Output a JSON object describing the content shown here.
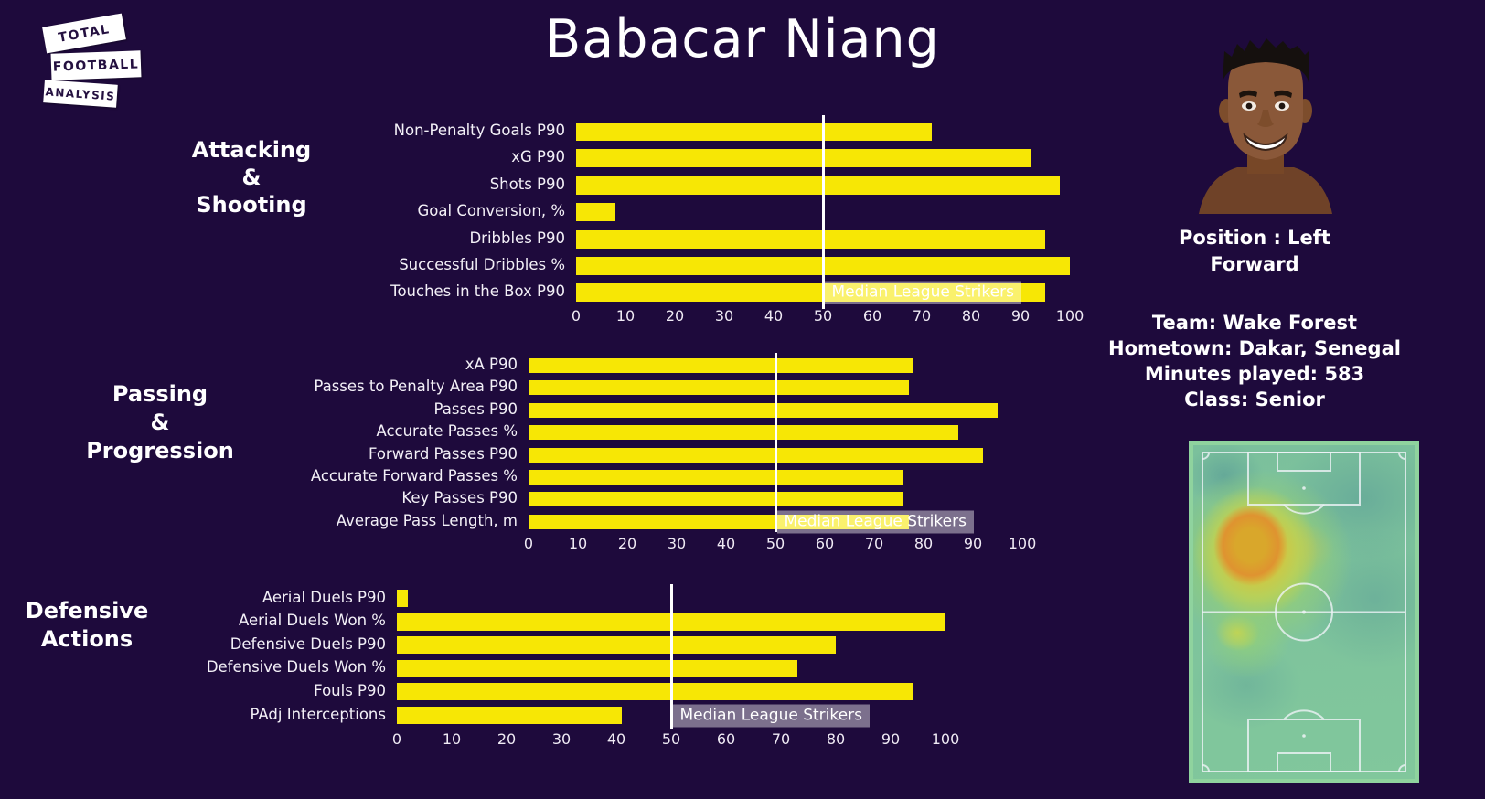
{
  "title": "Babacar Niang",
  "logo": {
    "lines": [
      "TOTAL",
      "FOOTBALL",
      "ANALYSIS"
    ]
  },
  "player": {
    "position_line1": "Position : Left",
    "position_line2": "Forward",
    "details": [
      "Team: Wake Forest",
      "Hometown: Dakar, Senegal",
      "Minutes played: 583",
      "Class: Senior"
    ]
  },
  "median_label": "Median League Strikers",
  "colors": {
    "background": "#1e0a3c",
    "bar_yellow": "#f7e705",
    "median_line": "#ffffff",
    "median_label_bg": "rgba(255,255,255,0.42)",
    "heatmap_hot": "#df9330",
    "heatmap_base": "#7ec29c"
  },
  "chart_data": [
    {
      "type": "bar",
      "orientation": "horizontal",
      "title_lines": [
        "Attacking",
        "&",
        "Shooting"
      ],
      "categories": [
        "Non-Penalty Goals P90",
        "xG P90",
        "Shots P90",
        "Goal Conversion, %",
        "Dribbles P90",
        "Successful Dribbles %",
        "Touches in the Box P90"
      ],
      "values": [
        72,
        92,
        98,
        8,
        95,
        100,
        95
      ],
      "xlim": [
        0,
        100
      ],
      "xticks": [
        0,
        10,
        20,
        30,
        40,
        50,
        60,
        70,
        80,
        90,
        100
      ],
      "median_line_x": 50,
      "annotation": "Median League Strikers",
      "grid": false,
      "legend": "none"
    },
    {
      "type": "bar",
      "orientation": "horizontal",
      "title_lines": [
        "Passing",
        "&",
        "Progression"
      ],
      "categories": [
        "xA P90",
        "Passes to Penalty Area P90",
        "Passes P90",
        "Accurate Passes %",
        "Forward Passes P90",
        "Accurate Forward Passes %",
        "Key Passes P90",
        "Average Pass Length, m"
      ],
      "values": [
        78,
        77,
        95,
        87,
        92,
        76,
        76,
        77
      ],
      "xlim": [
        0,
        100
      ],
      "xticks": [
        0,
        10,
        20,
        30,
        40,
        50,
        60,
        70,
        80,
        90,
        100
      ],
      "median_line_x": 50,
      "annotation": "Median League Strikers",
      "grid": false,
      "legend": "none"
    },
    {
      "type": "bar",
      "orientation": "horizontal",
      "title_lines": [
        "Defensive",
        "Actions"
      ],
      "categories": [
        "Aerial Duels P90",
        "Aerial Duels Won %",
        "Defensive Duels P90",
        "Defensive Duels Won %",
        "Fouls P90",
        "PAdj Interceptions"
      ],
      "values": [
        2,
        100,
        80,
        73,
        94,
        41
      ],
      "xlim": [
        0,
        100
      ],
      "xticks": [
        0,
        10,
        20,
        30,
        40,
        50,
        60,
        70,
        80,
        90,
        100
      ],
      "median_line_x": 50,
      "annotation": "Median League Strikers",
      "grid": false,
      "legend": "none"
    }
  ]
}
